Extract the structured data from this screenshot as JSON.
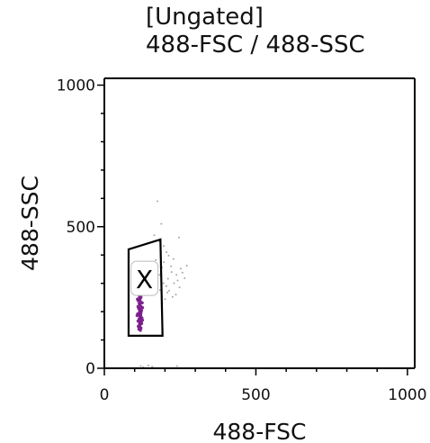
{
  "header": {
    "gate_title": "[Ungated]",
    "plot_title": "488-FSC / 488-SSC"
  },
  "chart_data": {
    "type": "scatter",
    "title": "[Ungated]",
    "subtitle": "488-FSC / 488-SSC",
    "xlabel": "488-FSC",
    "ylabel": "488-SSC",
    "xlim": [
      0,
      1024
    ],
    "ylim": [
      0,
      1024
    ],
    "x_ticks": [
      0,
      500,
      1000
    ],
    "y_ticks": [
      0,
      500,
      1000
    ],
    "x_tick_labels": [
      "0",
      "500",
      "1000"
    ],
    "y_tick_labels": [
      "0",
      "500",
      "1000"
    ],
    "grid": false,
    "gate": {
      "name": "X",
      "vertices": [
        [
          80,
          420
        ],
        [
          185,
          455
        ],
        [
          192,
          115
        ],
        [
          80,
          115
        ]
      ]
    },
    "series": [
      {
        "color": "#7a1e8c",
        "points": [
          [
            112,
            285
          ],
          [
            116,
            278
          ],
          [
            119,
            272
          ],
          [
            113,
            265
          ],
          [
            118,
            258
          ],
          [
            121,
            251
          ],
          [
            114,
            246
          ],
          [
            117,
            240
          ],
          [
            120,
            234
          ],
          [
            115,
            228
          ],
          [
            118,
            222
          ],
          [
            122,
            217
          ],
          [
            113,
            212
          ],
          [
            116,
            206
          ],
          [
            119,
            200
          ],
          [
            121,
            195
          ],
          [
            114,
            190
          ],
          [
            117,
            185
          ],
          [
            120,
            180
          ],
          [
            115,
            175
          ],
          [
            118,
            170
          ],
          [
            122,
            165
          ],
          [
            116,
            160
          ],
          [
            119,
            155
          ],
          [
            114,
            150
          ],
          [
            117,
            146
          ],
          [
            121,
            142
          ],
          [
            110,
            276
          ],
          [
            124,
            262
          ],
          [
            109,
            244
          ],
          [
            125,
            231
          ],
          [
            111,
            218
          ],
          [
            123,
            204
          ],
          [
            110,
            192
          ],
          [
            124,
            178
          ],
          [
            111,
            167
          ],
          [
            123,
            158
          ],
          [
            112,
            148
          ],
          [
            118,
            290
          ],
          [
            120,
            296
          ],
          [
            115,
            300
          ],
          [
            121,
            268
          ],
          [
            112,
            238
          ],
          [
            126,
            214
          ],
          [
            108,
            186
          ],
          [
            126,
            170
          ],
          [
            114,
            138
          ],
          [
            119,
            134
          ],
          [
            116,
            255
          ],
          [
            118,
            244
          ],
          [
            117,
            226
          ],
          [
            119,
            210
          ],
          [
            116,
            198
          ],
          [
            120,
            188
          ],
          [
            117,
            176
          ],
          [
            118,
            162
          ]
        ]
      },
      {
        "color": "#8a8a8a",
        "points": [
          [
            175,
            590
          ],
          [
            188,
            510
          ],
          [
            165,
            470
          ],
          [
            182,
            448
          ],
          [
            196,
            432
          ],
          [
            205,
            410
          ],
          [
            212,
            398
          ],
          [
            228,
            386
          ],
          [
            246,
            462
          ],
          [
            252,
            352
          ],
          [
            220,
            360
          ],
          [
            238,
            330
          ],
          [
            258,
            338
          ],
          [
            210,
            316
          ],
          [
            230,
            300
          ],
          [
            248,
            286
          ],
          [
            208,
            268
          ],
          [
            225,
            252
          ],
          [
            200,
            244
          ],
          [
            265,
            318
          ],
          [
            272,
            362
          ],
          [
            190,
            356
          ],
          [
            182,
            330
          ],
          [
            195,
            300
          ],
          [
            214,
            274
          ],
          [
            236,
            260
          ],
          [
            160,
            350
          ],
          [
            150,
            365
          ],
          [
            170,
            382
          ],
          [
            205,
            290
          ],
          [
            184,
            276
          ],
          [
            222,
            340
          ],
          [
            242,
            310
          ],
          [
            196,
            375
          ],
          [
            176,
            358
          ],
          [
            120,
            8
          ],
          [
            128,
            4
          ],
          [
            145,
            10
          ],
          [
            158,
            6
          ],
          [
            240,
            8
          ]
        ]
      }
    ]
  }
}
